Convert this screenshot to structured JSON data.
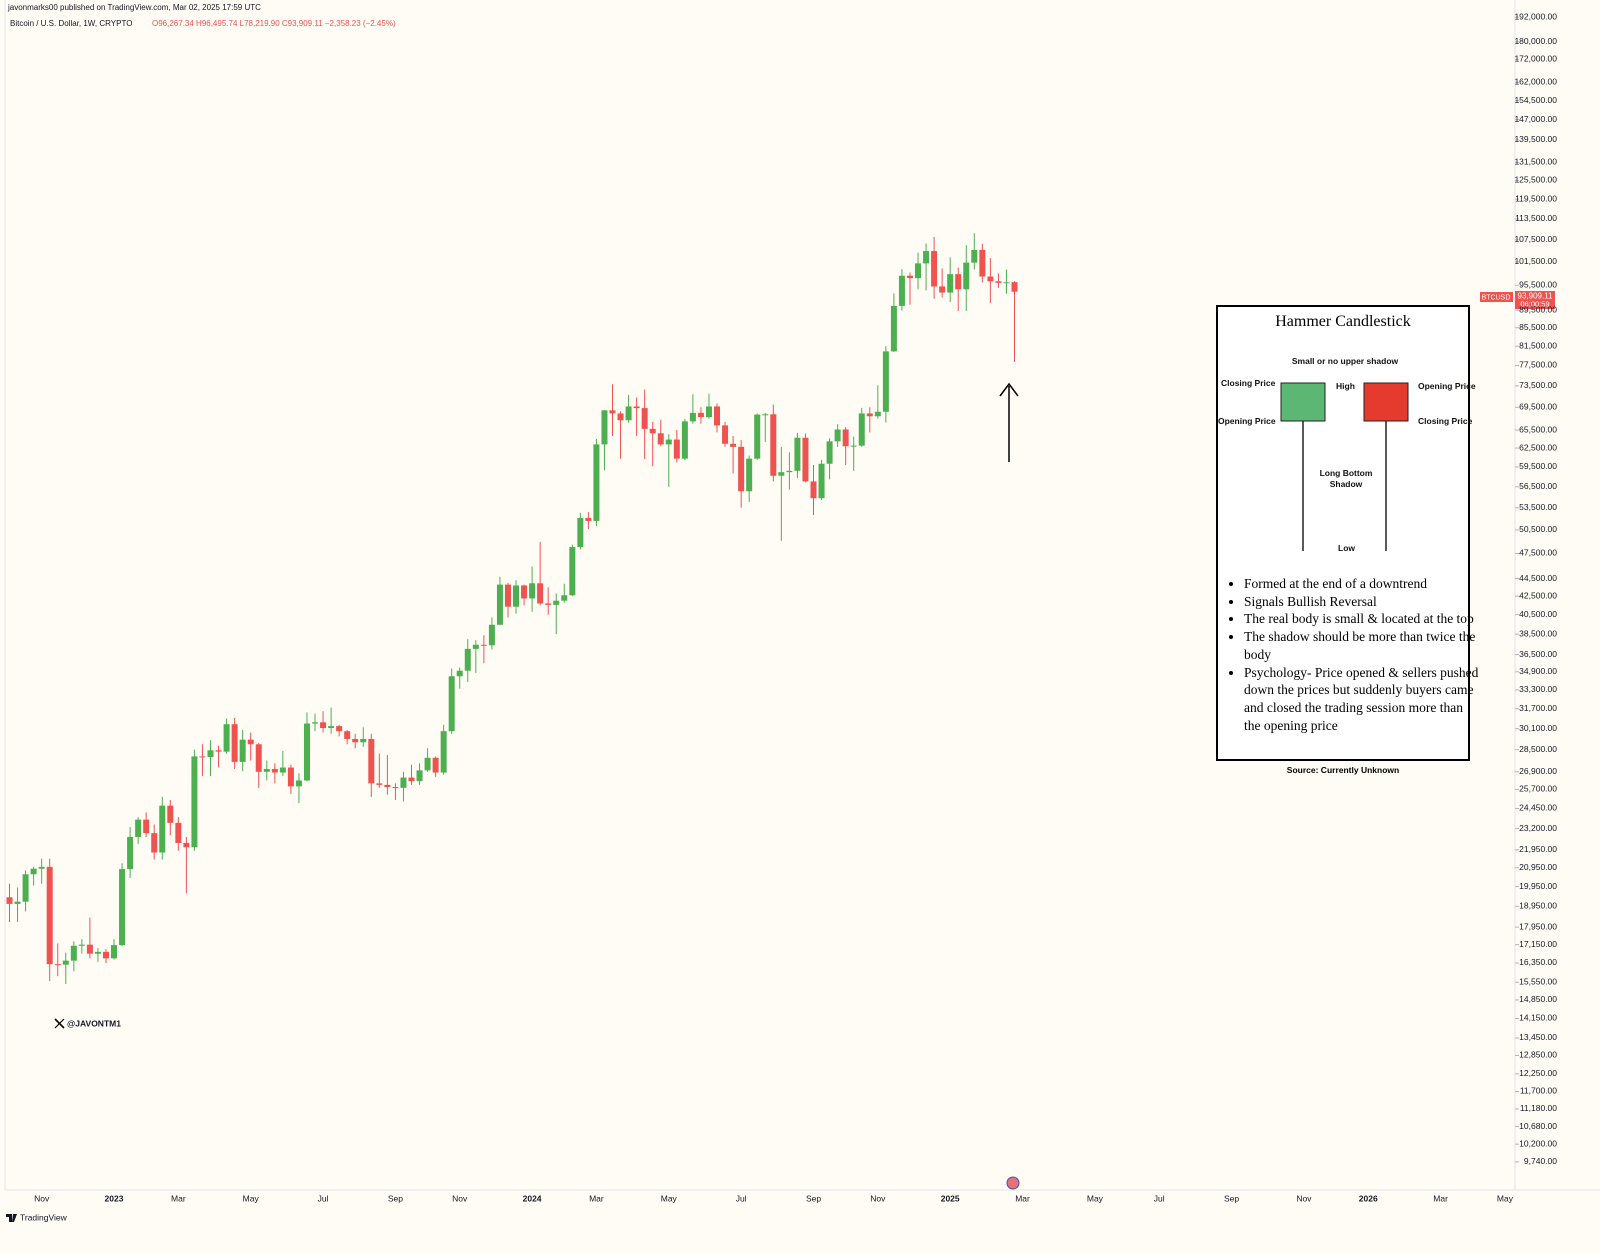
{
  "header": {
    "published": "javonmarks00 published on TradingView.com, Mar 02, 2025 17:59 UTC",
    "symbol": "Bitcoin / U.S. Dollar, 1W, CRYPTO",
    "ohlc": "O96,267.34 H96,495.74 L78,219.90 C93,909.11 −2,358.23 (−2.45%)"
  },
  "price_tag": {
    "ticker": "BTCUSD",
    "price": "93,909.11",
    "countdown": "06:00:59"
  },
  "watermark": "@JAVONTM1",
  "footer": "TradingView",
  "inset": {
    "title": "Hammer Candlestick",
    "upper": "Small or no upper shadow",
    "closing_left": "Closing Price",
    "high": "High",
    "opening_right": "Opening Price",
    "opening_left": "Opening Price",
    "closing_right": "Closing Price",
    "shadow": "Long Bottom Shadow",
    "low": "Low",
    "bullets": [
      "Formed at the end of a downtrend",
      "Signals Bullish Reversal",
      "The real body is small & located at the top",
      "The shadow should be more than twice the body",
      "Psychology- Price opened & sellers pushed down the prices but suddenly buyers came and closed the trading session more than the opening price"
    ],
    "source": "Source: Currently Unknown"
  },
  "chart_data": {
    "type": "candlestick",
    "log_scale": true,
    "up_color": "#4caf50",
    "down_color": "#ef5350",
    "ylim": [
      9100,
      196600
    ],
    "yticks": [
      {
        "value": 192000,
        "label": "192,000.00"
      },
      {
        "value": 180000,
        "label": "180,000.00"
      },
      {
        "value": 172000,
        "label": "172,000.00"
      },
      {
        "value": 162000,
        "label": "162,000.00"
      },
      {
        "value": 154500,
        "label": "154,500.00"
      },
      {
        "value": 147000,
        "label": "147,000.00"
      },
      {
        "value": 139500,
        "label": "139,500.00"
      },
      {
        "value": 131500,
        "label": "131,500.00"
      },
      {
        "value": 125500,
        "label": "125,500.00"
      },
      {
        "value": 119500,
        "label": "119,500.00"
      },
      {
        "value": 113500,
        "label": "113,500.00"
      },
      {
        "value": 107500,
        "label": "107,500.00"
      },
      {
        "value": 101500,
        "label": "101,500.00"
      },
      {
        "value": 95500,
        "label": "95,500.00"
      },
      {
        "value": 89500,
        "label": "89,500.00"
      },
      {
        "value": 85500,
        "label": "85,500.00"
      },
      {
        "value": 81500,
        "label": "81,500.00"
      },
      {
        "value": 77500,
        "label": "77,500.00"
      },
      {
        "value": 73500,
        "label": "73,500.00"
      },
      {
        "value": 69500,
        "label": "69,500.00"
      },
      {
        "value": 65500,
        "label": "65,500.00"
      },
      {
        "value": 62500,
        "label": "62,500.00"
      },
      {
        "value": 59500,
        "label": "59,500.00"
      },
      {
        "value": 56500,
        "label": "56,500.00"
      },
      {
        "value": 53500,
        "label": "53,500.00"
      },
      {
        "value": 50500,
        "label": "50,500.00"
      },
      {
        "value": 47500,
        "label": "47,500.00"
      },
      {
        "value": 44500,
        "label": "44,500.00"
      },
      {
        "value": 42500,
        "label": "42,500.00"
      },
      {
        "value": 40500,
        "label": "40,500.00"
      },
      {
        "value": 38500,
        "label": "38,500.00"
      },
      {
        "value": 36500,
        "label": "36,500.00"
      },
      {
        "value": 34900,
        "label": "34,900.00"
      },
      {
        "value": 33300,
        "label": "33,300.00"
      },
      {
        "value": 31700,
        "label": "31,700.00"
      },
      {
        "value": 30100,
        "label": "30,100.00"
      },
      {
        "value": 28500,
        "label": "28,500.00"
      },
      {
        "value": 26900,
        "label": "26,900.00"
      },
      {
        "value": 25700,
        "label": "25,700.00"
      },
      {
        "value": 24450,
        "label": "24,450.00"
      },
      {
        "value": 23200,
        "label": "23,200.00"
      },
      {
        "value": 21950,
        "label": "21,950.00"
      },
      {
        "value": 20950,
        "label": "20,950.00"
      },
      {
        "value": 19950,
        "label": "19,950.00"
      },
      {
        "value": 18950,
        "label": "18,950.00"
      },
      {
        "value": 17950,
        "label": "17,950.00"
      },
      {
        "value": 17150,
        "label": "17,150.00"
      },
      {
        "value": 16350,
        "label": "16,350.00"
      },
      {
        "value": 15550,
        "label": "15,550.00"
      },
      {
        "value": 14850,
        "label": "14,850.00"
      },
      {
        "value": 14150,
        "label": "14,150.00"
      },
      {
        "value": 13450,
        "label": "13,450.00"
      },
      {
        "value": 12850,
        "label": "12,850.00"
      },
      {
        "value": 12250,
        "label": "12,250.00"
      },
      {
        "value": 11700,
        "label": "11,700.00"
      },
      {
        "value": 11180,
        "label": "11,180.00"
      },
      {
        "value": 10680,
        "label": "10,680.00"
      },
      {
        "value": 10200,
        "label": "10,200.00"
      },
      {
        "value": 9740,
        "label": "9,740.00"
      }
    ],
    "categories": [
      null,
      null,
      null,
      null,
      "Nov",
      null,
      null,
      null,
      null,
      null,
      null,
      null,
      null,
      "2023",
      null,
      null,
      null,
      null,
      null,
      null,
      null,
      "Mar",
      null,
      null,
      null,
      null,
      null,
      null,
      null,
      null,
      "May",
      null,
      null,
      null,
      null,
      null,
      null,
      null,
      null,
      "Jul",
      null,
      null,
      null,
      null,
      null,
      null,
      null,
      null,
      "Sep",
      null,
      null,
      null,
      null,
      null,
      null,
      null,
      "Nov",
      null,
      null,
      null,
      null,
      null,
      null,
      null,
      null,
      "2024",
      null,
      null,
      null,
      null,
      null,
      null,
      null,
      "Mar",
      null,
      null,
      null,
      null,
      null,
      null,
      null,
      null,
      "May",
      null,
      null,
      null,
      null,
      null,
      null,
      null,
      null,
      "Jul",
      null,
      null,
      null,
      null,
      null,
      null,
      null,
      null,
      "Sep",
      null,
      null,
      null,
      null,
      null,
      null,
      null,
      "Nov",
      null,
      null,
      null,
      null,
      null,
      null,
      null,
      null,
      "2025",
      null,
      null,
      null,
      null,
      null,
      null,
      null,
      null,
      "Mar",
      null,
      null,
      null,
      null,
      null,
      null,
      null,
      null,
      "May",
      null,
      null,
      null,
      null,
      null,
      null,
      null,
      "Jul",
      null,
      null,
      null,
      null,
      null,
      null,
      null,
      null,
      "Sep",
      null,
      null,
      null,
      null,
      null,
      null,
      null,
      null,
      "Nov",
      null,
      null,
      null,
      null,
      null,
      null,
      null,
      "2026",
      null,
      null,
      null,
      null,
      null,
      null,
      null,
      null,
      "Mar",
      null,
      null,
      null,
      null,
      null,
      null,
      null,
      "May",
      null
    ],
    "open": [
      19400,
      19070,
      19180,
      20600,
      20900,
      21000,
      16300,
      16280,
      16450,
      17100,
      17150,
      16750,
      16830,
      16550,
      17130,
      20880,
      22700,
      23750,
      22930,
      21800,
      24630,
      23550,
      22350,
      22100,
      28000,
      27950,
      28450,
      28350,
      30450,
      27600,
      29250,
      28900,
      26900,
      27100,
      26850,
      27200,
      25900,
      26300,
      30500,
      30600,
      30150,
      30300,
      29900,
      29300,
      29050,
      29300,
      26100,
      26000,
      25850,
      25800,
      26500,
      26250,
      27000,
      27900,
      26850,
      29900,
      34500,
      35000,
      37050,
      37450,
      37400,
      39450,
      43800,
      41350,
      43700,
      42250,
      43950,
      41700,
      41550,
      42000,
      42600,
      48300,
      52100,
      51700,
      63100,
      68950,
      68400,
      67200,
      69650,
      69360,
      65700,
      64950,
      63100,
      63900,
      60800,
      67000,
      68500,
      67750,
      69650,
      66300,
      63200,
      62700,
      55850,
      60800,
      68200,
      68250,
      58150,
      58700,
      58900,
      64200,
      57300,
      54850,
      60000,
      63600,
      65600,
      62800,
      62900,
      68400,
      67900,
      68700,
      80400,
      90500,
      97900,
      97300,
      101100,
      104400,
      95200,
      93700,
      98300,
      94500,
      101300,
      104700,
      97700,
      96500,
      96100,
      96267.34,
      null,
      null,
      null,
      null,
      null,
      null,
      null,
      null,
      null,
      null,
      null,
      null,
      null,
      null,
      null,
      null,
      null,
      null,
      null,
      null,
      null,
      null,
      null,
      null,
      null,
      null,
      null,
      null,
      null,
      null,
      null,
      null,
      null,
      null,
      null,
      null,
      null,
      null,
      null,
      null,
      null,
      null,
      null,
      null,
      null,
      null,
      null,
      null,
      null,
      null,
      null,
      null,
      null,
      null,
      null,
      null,
      null,
      null,
      null,
      null,
      null,
      null
    ],
    "high": [
      20100,
      19900,
      20800,
      21000,
      21450,
      21450,
      17200,
      16800,
      17300,
      17400,
      18400,
      17000,
      16950,
      17400,
      21200,
      23300,
      23900,
      24200,
      23450,
      25200,
      25000,
      23900,
      22700,
      28500,
      28900,
      29200,
      28800,
      30900,
      30950,
      30000,
      29800,
      29000,
      27700,
      27500,
      28400,
      27400,
      26800,
      31400,
      31300,
      31500,
      31800,
      30400,
      30000,
      29700,
      30200,
      29700,
      28200,
      28100,
      26100,
      26900,
      27400,
      27500,
      28600,
      28000,
      30400,
      35200,
      35300,
      38000,
      37900,
      38400,
      40200,
      44700,
      44000,
      44300,
      43800,
      45900,
      48970,
      43500,
      42800,
      43900,
      48600,
      52800,
      52900,
      64000,
      69000,
      73800,
      68800,
      71800,
      71300,
      72800,
      66900,
      67300,
      64800,
      65500,
      67400,
      71900,
      69500,
      72000,
      70200,
      66900,
      64500,
      63800,
      61300,
      68400,
      68500,
      70000,
      62700,
      61800,
      65000,
      64900,
      59800,
      60600,
      64100,
      66500,
      66000,
      64400,
      69400,
      69500,
      73600,
      81500,
      93500,
      99600,
      98700,
      104000,
      106500,
      108300,
      99800,
      102700,
      100000,
      106000,
      109350,
      106400,
      102500,
      98500,
      99500,
      96495.74,
      null,
      null,
      null,
      null,
      null,
      null,
      null,
      null,
      null,
      null,
      null,
      null,
      null,
      null,
      null,
      null,
      null,
      null,
      null,
      null,
      null,
      null,
      null,
      null,
      null,
      null,
      null,
      null,
      null,
      null,
      null,
      null,
      null,
      null,
      null,
      null,
      null,
      null,
      null,
      null,
      null,
      null,
      null,
      null,
      null,
      null,
      null,
      null,
      null,
      null,
      null,
      null,
      null,
      null,
      null,
      null,
      null,
      null,
      null,
      null,
      null,
      null
    ],
    "low": [
      18200,
      18200,
      18700,
      20000,
      20100,
      15600,
      15800,
      15480,
      16000,
      16750,
      16550,
      16400,
      16350,
      16500,
      17100,
      20400,
      22300,
      22700,
      21400,
      21400,
      22800,
      21900,
      19600,
      21900,
      26600,
      26600,
      27200,
      28200,
      27100,
      26950,
      27700,
      25800,
      26300,
      26100,
      26600,
      25400,
      24800,
      26250,
      29900,
      29800,
      29700,
      29500,
      28900,
      28600,
      28700,
      25200,
      25800,
      25350,
      25000,
      24900,
      26000,
      26000,
      26900,
      26550,
      26700,
      29700,
      33400,
      34000,
      34800,
      35700,
      37000,
      39400,
      40200,
      40600,
      41500,
      40800,
      41500,
      40500,
      38500,
      41800,
      42500,
      48000,
      50600,
      51000,
      59000,
      64500,
      60800,
      66800,
      64500,
      60700,
      59600,
      62800,
      56500,
      60200,
      60600,
      66600,
      66600,
      67500,
      65100,
      62700,
      58500,
      53500,
      54300,
      60600,
      63500,
      57300,
      49100,
      56100,
      57800,
      57200,
      52500,
      54600,
      57600,
      62700,
      59800,
      58900,
      62700,
      65100,
      67500,
      66800,
      80300,
      89400,
      90800,
      94500,
      94200,
      92200,
      92500,
      91400,
      89300,
      89300,
      99500,
      96200,
      91200,
      94800,
      93400,
      78219.9,
      null,
      null,
      null,
      null,
      null,
      null,
      null,
      null,
      null,
      null,
      null,
      null,
      null,
      null,
      null,
      null,
      null,
      null,
      null,
      null,
      null,
      null,
      null,
      null,
      null,
      null,
      null,
      null,
      null,
      null,
      null,
      null,
      null,
      null,
      null,
      null,
      null,
      null,
      null,
      null,
      null,
      null,
      null,
      null,
      null,
      null,
      null,
      null,
      null,
      null,
      null,
      null,
      null,
      null,
      null,
      null,
      null,
      null,
      null,
      null,
      null,
      null
    ],
    "close": [
      19070,
      19180,
      20600,
      20900,
      21000,
      16300,
      16280,
      16450,
      17100,
      17150,
      16750,
      16830,
      16550,
      17130,
      20880,
      22700,
      23750,
      22930,
      21800,
      24630,
      23550,
      22350,
      22100,
      28000,
      27950,
      28450,
      28350,
      30450,
      27600,
      29250,
      28900,
      26900,
      27100,
      26850,
      27200,
      25900,
      26300,
      30500,
      30600,
      30150,
      30300,
      29900,
      29300,
      29050,
      29300,
      26100,
      26000,
      25850,
      25800,
      26500,
      26250,
      27000,
      27900,
      26850,
      29900,
      34500,
      35000,
      37050,
      37450,
      37400,
      39450,
      43800,
      41350,
      43700,
      42250,
      43950,
      41700,
      41550,
      42000,
      42600,
      48300,
      52100,
      51700,
      63100,
      68950,
      68400,
      67200,
      69650,
      69360,
      65700,
      64950,
      63100,
      63900,
      60800,
      67000,
      68500,
      67750,
      69650,
      66300,
      63200,
      62700,
      55850,
      60800,
      68200,
      68250,
      58150,
      58700,
      58900,
      64200,
      57300,
      54850,
      60000,
      63600,
      65600,
      62800,
      62900,
      68400,
      67900,
      68700,
      80400,
      90500,
      97900,
      97300,
      101100,
      104400,
      95200,
      93700,
      98300,
      94500,
      101300,
      104700,
      97700,
      96500,
      96100,
      96250,
      93909.11,
      null,
      null,
      null,
      null,
      null,
      null,
      null,
      null,
      null,
      null,
      null,
      null,
      null,
      null,
      null,
      null,
      null,
      null,
      null,
      null,
      null,
      null,
      null,
      null,
      null,
      null,
      null,
      null,
      null,
      null,
      null,
      null,
      null,
      null,
      null,
      null,
      null,
      null,
      null,
      null,
      null,
      null,
      null,
      null,
      null,
      null,
      null,
      null,
      null,
      null,
      null,
      null,
      null,
      null,
      null,
      null,
      null,
      null,
      null,
      null,
      null,
      null
    ]
  }
}
